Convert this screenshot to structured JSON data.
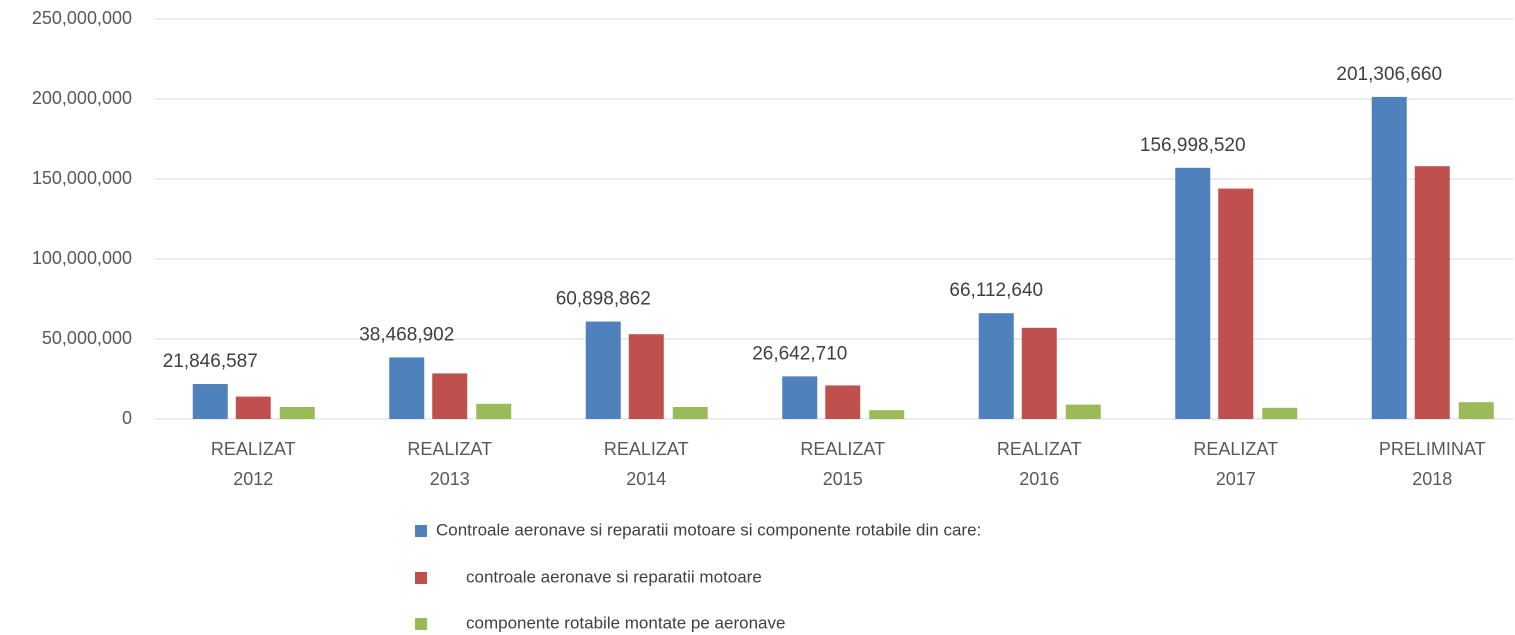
{
  "chart_data": {
    "type": "bar",
    "categories": [
      [
        "REALIZAT",
        "2012"
      ],
      [
        "REALIZAT",
        "2013"
      ],
      [
        "REALIZAT",
        "2014"
      ],
      [
        "REALIZAT",
        "2015"
      ],
      [
        "REALIZAT",
        "2016"
      ],
      [
        "REALIZAT",
        "2017"
      ],
      [
        "PRELIMINAT",
        "2018"
      ]
    ],
    "series": [
      {
        "name": "Controale aeronave si reparatii motoare si componente rotabile din care:",
        "color": "#4f81bd",
        "values": [
          21846587,
          38468902,
          60898862,
          26642710,
          66112640,
          156998520,
          201306660
        ],
        "value_labels": [
          "21,846,587",
          "38,468,902",
          "60,898,862",
          "26,642,710",
          "66,112,640",
          "156,998,520",
          "201,306,660"
        ]
      },
      {
        "name": "controale aeronave si reparatii motoare",
        "color": "#c0504d",
        "values": [
          14000000,
          28500000,
          53000000,
          21000000,
          57000000,
          144000000,
          158000000
        ]
      },
      {
        "name": "componente rotabile montate pe aeronave",
        "color": "#9bbb59",
        "values": [
          7500000,
          9500000,
          7500000,
          5500000,
          9000000,
          7000000,
          10500000
        ]
      }
    ],
    "ylim": [
      0,
      250000000
    ],
    "yticks": [
      0,
      {
        "value": 50000000,
        "label": "50,000,000"
      },
      {
        "value": 100000000,
        "label": "100,000,000"
      },
      {
        "value": 150000000,
        "label": "150,000,000"
      },
      {
        "value": 200000000,
        "label": "200,000,000"
      },
      {
        "value": 250000000,
        "label": "250,000,000"
      }
    ],
    "grid": true
  }
}
